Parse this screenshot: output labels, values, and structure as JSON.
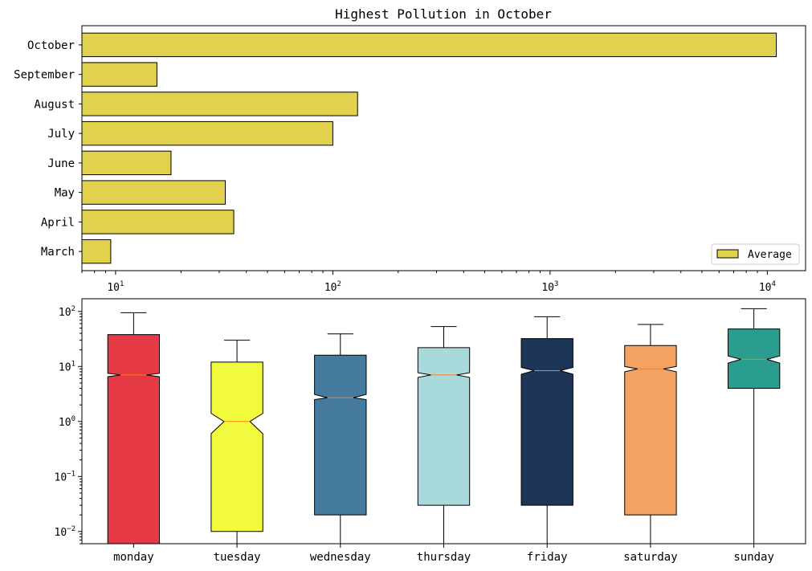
{
  "chart_data": [
    {
      "type": "bar",
      "orientation": "horizontal",
      "title": "Highest Pollution in October",
      "xscale": "log",
      "xlim": [
        7,
        15000
      ],
      "x_tick_labels": [
        {
          "value": 10,
          "label": "10"
        },
        {
          "value": 100,
          "label": "10"
        },
        {
          "value": 1000,
          "label": "10"
        },
        {
          "value": 10000,
          "label": "10"
        }
      ],
      "x_tick_exponents": [
        "1",
        "2",
        "3",
        "4"
      ],
      "categories": [
        "March",
        "April",
        "May",
        "June",
        "July",
        "August",
        "September",
        "October"
      ],
      "series": [
        {
          "name": "Average",
          "color": "#e1d14d",
          "values": [
            9.5,
            35,
            32,
            18,
            100,
            130,
            15.5,
            11000
          ]
        }
      ],
      "legend": {
        "position": "lower-right",
        "entries": [
          "Average"
        ]
      }
    },
    {
      "type": "box",
      "notched": true,
      "yscale": "log",
      "ylim": [
        0.006,
        170
      ],
      "y_tick_labels": [
        {
          "value": 0.01,
          "label": "10"
        },
        {
          "value": 0.1,
          "label": "10"
        },
        {
          "value": 1,
          "label": "10"
        },
        {
          "value": 10,
          "label": "10"
        },
        {
          "value": 100,
          "label": "10"
        }
      ],
      "y_tick_exponents": [
        "−2",
        "−1",
        "0",
        "1",
        "2"
      ],
      "categories": [
        "monday",
        "tuesday",
        "wednesday",
        "thursday",
        "friday",
        "saturday",
        "sunday"
      ],
      "boxes": [
        {
          "label": "monday",
          "color": "#e63946",
          "whislo": 0.001,
          "q1": 0.004,
          "med": 7,
          "q3": 38,
          "whishi": 95,
          "notch_lo": 6.5,
          "notch_hi": 7.5
        },
        {
          "label": "tuesday",
          "color": "#f1fa3c",
          "whislo": 0.001,
          "q1": 0.01,
          "med": 1,
          "q3": 12,
          "whishi": 30,
          "notch_lo": 0.6,
          "notch_hi": 1.4
        },
        {
          "label": "wednesday",
          "color": "#457b9d",
          "whislo": 0.001,
          "q1": 0.02,
          "med": 2.7,
          "q3": 16,
          "whishi": 39,
          "notch_lo": 2.5,
          "notch_hi": 3.1
        },
        {
          "label": "thursday",
          "color": "#a8dadc",
          "whislo": 0.001,
          "q1": 0.03,
          "med": 7,
          "q3": 22,
          "whishi": 53,
          "notch_lo": 6.3,
          "notch_hi": 7.7
        },
        {
          "label": "friday",
          "color": "#1d3557",
          "whislo": 0.001,
          "q1": 0.03,
          "med": 8.4,
          "q3": 32,
          "whishi": 80,
          "notch_lo": 7.2,
          "notch_hi": 9.6
        },
        {
          "label": "saturday",
          "color": "#f4a261",
          "whislo": 0.001,
          "q1": 0.02,
          "med": 9,
          "q3": 24,
          "whishi": 58,
          "notch_lo": 8,
          "notch_hi": 10
        },
        {
          "label": "sunday",
          "color": "#2a9d8f",
          "whislo": 0.001,
          "q1": 4,
          "med": 13.5,
          "q3": 48,
          "whishi": 112,
          "notch_lo": 11.5,
          "notch_hi": 15.5
        }
      ],
      "median_color": "#ff7f0e"
    }
  ]
}
